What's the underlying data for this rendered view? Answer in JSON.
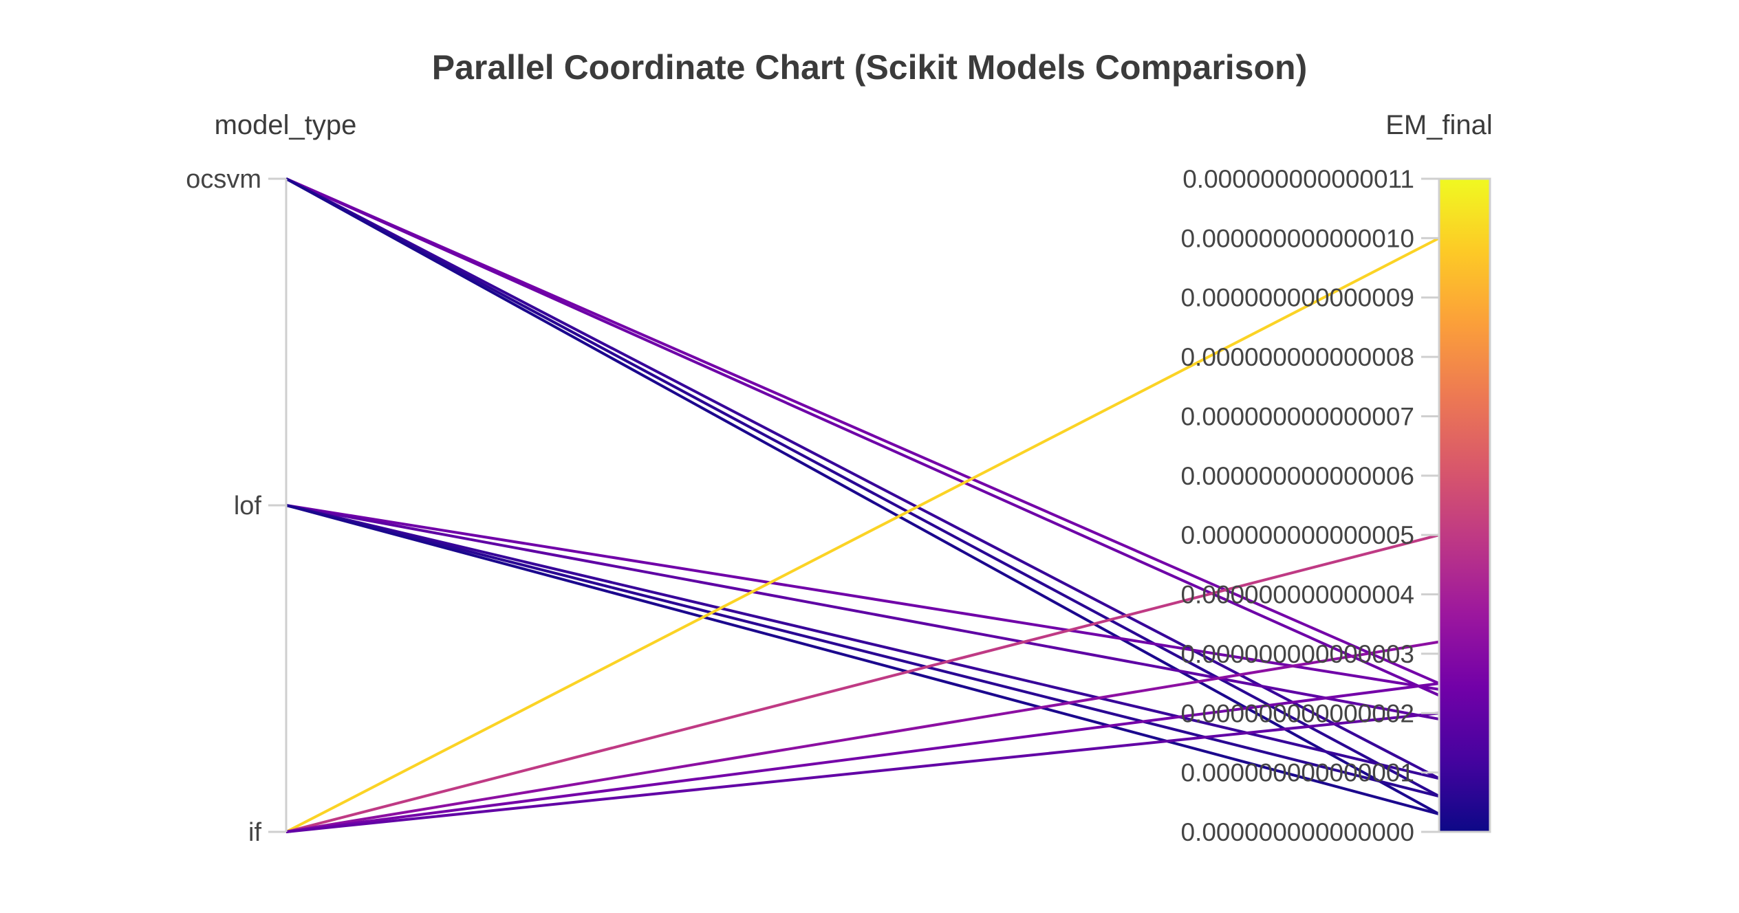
{
  "chart_data": {
    "type": "parallel_coordinates",
    "title": "Parallel Coordinate Chart (Scikit Models Comparison)",
    "dimensions": [
      {
        "name": "model_type",
        "kind": "categorical",
        "ticks": [
          "ocsvm",
          "lof",
          "if"
        ]
      },
      {
        "name": "EM_final",
        "kind": "numeric",
        "range": [
          0.0,
          1.1e-13
        ],
        "ticks": [
          "0.000000000000011",
          "0.000000000000010",
          "0.000000000000009",
          "0.000000000000008",
          "0.000000000000007",
          "0.000000000000006",
          "0.000000000000005",
          "0.000000000000004",
          "0.000000000000003",
          "0.000000000000002",
          "0.000000000000001",
          "0.000000000000000"
        ]
      }
    ],
    "rows": [
      {
        "model_type": "ocsvm",
        "EM_final": 2.5e-14
      },
      {
        "model_type": "ocsvm",
        "EM_final": 2.3e-14
      },
      {
        "model_type": "ocsvm",
        "EM_final": 9e-15
      },
      {
        "model_type": "ocsvm",
        "EM_final": 6e-15
      },
      {
        "model_type": "ocsvm",
        "EM_final": 3e-15
      },
      {
        "model_type": "lof",
        "EM_final": 2.4e-14
      },
      {
        "model_type": "lof",
        "EM_final": 1.9e-14
      },
      {
        "model_type": "lof",
        "EM_final": 9e-15
      },
      {
        "model_type": "lof",
        "EM_final": 6e-15
      },
      {
        "model_type": "lof",
        "EM_final": 3e-15
      },
      {
        "model_type": "if",
        "EM_final": 1e-13
      },
      {
        "model_type": "if",
        "EM_final": 5e-14
      },
      {
        "model_type": "if",
        "EM_final": 3.2e-14
      },
      {
        "model_type": "if",
        "EM_final": 2.5e-14
      },
      {
        "model_type": "if",
        "EM_final": 2e-14
      }
    ],
    "colorscale": "plasma",
    "colorbar": {
      "range": [
        0.0,
        1.1e-13
      ]
    }
  }
}
